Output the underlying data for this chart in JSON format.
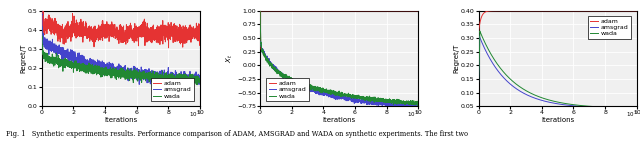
{
  "fig_width": 6.4,
  "fig_height": 1.54,
  "dpi": 100,
  "plots": [
    {
      "ylabel": "Regret/T",
      "xlabel": "Iterations",
      "xlim": [
        0,
        10000000.0
      ],
      "ylim": [
        0.0,
        0.5
      ],
      "yticks": [
        0.0,
        0.1,
        0.2,
        0.3,
        0.4,
        0.5
      ],
      "xticks": [
        0,
        2000000,
        4000000,
        6000000,
        8000000,
        10000000
      ],
      "xticklabels": [
        "0",
        "2",
        "4",
        "6",
        "8",
        "10"
      ],
      "legend_loc": "lower right",
      "series": {
        "adam": {
          "color": "#e53333"
        },
        "amsgrad": {
          "color": "#4444cc"
        },
        "wada": {
          "color": "#228833"
        }
      }
    },
    {
      "ylabel": "$X_t$",
      "xlabel": "Iterations",
      "xlim": [
        0,
        10000000.0
      ],
      "ylim": [
        -0.75,
        1.0
      ],
      "yticks": [
        -0.75,
        -0.5,
        -0.25,
        0.0,
        0.25,
        0.5,
        0.75,
        1.0
      ],
      "xticks": [
        0,
        2000000,
        4000000,
        6000000,
        8000000,
        10000000
      ],
      "xticklabels": [
        "0",
        "2",
        "4",
        "6",
        "8",
        "10"
      ],
      "legend_loc": "lower left",
      "series": {
        "adam": {
          "color": "#e53333"
        },
        "amsgrad": {
          "color": "#4444cc"
        },
        "wada": {
          "color": "#228833"
        }
      }
    },
    {
      "ylabel": "Regret/T",
      "xlabel": "Iterations",
      "xlim": [
        0,
        10000000.0
      ],
      "ylim": [
        0.05,
        0.4
      ],
      "yticks": [
        0.05,
        0.1,
        0.15,
        0.2,
        0.25,
        0.3,
        0.35,
        0.4
      ],
      "xticks": [
        0,
        2000000,
        4000000,
        6000000,
        8000000,
        10000000
      ],
      "xticklabels": [
        "0",
        "2",
        "4",
        "6",
        "8",
        "10"
      ],
      "legend_loc": "upper right",
      "series": {
        "adam": {
          "color": "#e53333"
        },
        "amsgrad": {
          "color": "#4444cc"
        },
        "wada": {
          "color": "#228833"
        }
      }
    }
  ],
  "caption": "Fig. 1   Synthetic experiments results. Performance comparison of ADAM, AMSGRAD and WADA on synthetic experiments. The first two"
}
